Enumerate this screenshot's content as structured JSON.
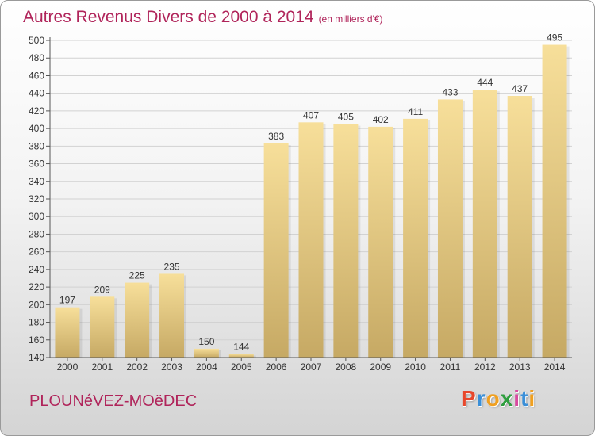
{
  "header": {
    "title": "Autres Revenus Divers de 2000 à 2014",
    "unit": "(en milliers d'€)"
  },
  "footer": {
    "commune": "PLOUNéVEZ-MOëDEC",
    "brand_letters": [
      {
        "ch": "P",
        "color": "#e8472b"
      },
      {
        "ch": "r",
        "color": "#3a8fd8"
      },
      {
        "ch": "o",
        "color": "#f0a020"
      },
      {
        "ch": "x",
        "color": "#2e9e3e"
      },
      {
        "ch": "i",
        "color": "#d94aa0"
      },
      {
        "ch": "t",
        "color": "#3a8fd8"
      },
      {
        "ch": "i",
        "color": "#f0a020"
      }
    ]
  },
  "colors": {
    "accent": "#b0245a",
    "bar_top": "#f7df9a",
    "bar_bottom": "#c6a964"
  },
  "chart_data": {
    "type": "bar",
    "title": "Autres Revenus Divers de 2000 à 2014",
    "subtitle": "(en milliers d'€)",
    "categories": [
      "2000",
      "2001",
      "2002",
      "2003",
      "2004",
      "2005",
      "2006",
      "2007",
      "2008",
      "2009",
      "2010",
      "2011",
      "2012",
      "2013",
      "2014"
    ],
    "values": [
      197,
      209,
      225,
      235,
      150,
      144,
      383,
      407,
      405,
      402,
      411,
      433,
      444,
      437,
      495
    ],
    "ylim": [
      140,
      500
    ],
    "yticks": [
      140,
      160,
      180,
      200,
      220,
      240,
      260,
      280,
      300,
      320,
      340,
      360,
      380,
      400,
      420,
      440,
      460,
      480,
      500
    ],
    "grid": true,
    "legend": "none"
  }
}
